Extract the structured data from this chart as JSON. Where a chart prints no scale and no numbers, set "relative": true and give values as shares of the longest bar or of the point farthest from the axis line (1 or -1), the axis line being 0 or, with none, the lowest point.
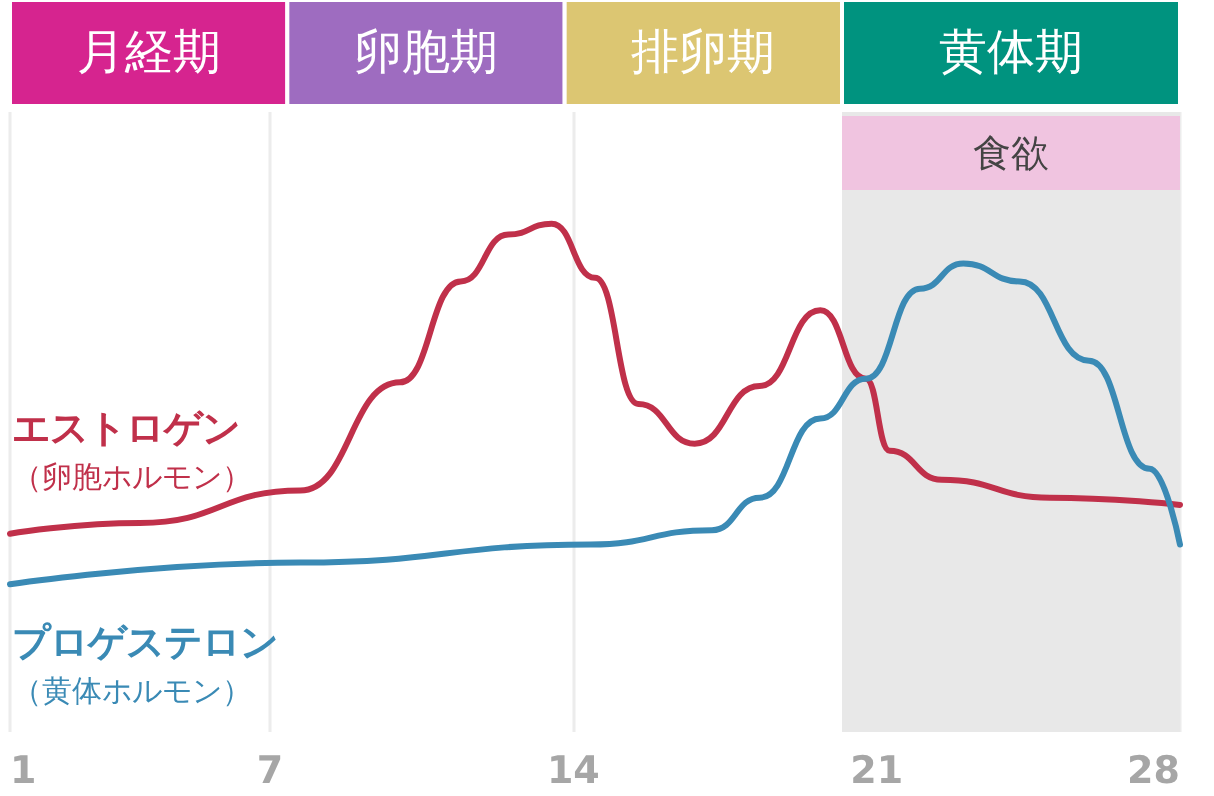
{
  "chart_data": {
    "type": "line",
    "relative": true,
    "xlim": [
      1,
      28
    ],
    "xticks": [
      1,
      7,
      14,
      21,
      28
    ],
    "grid": "x",
    "marker": "none",
    "line_style": "solid",
    "legend": false,
    "annotations": [
      "月経期",
      "卵胞期",
      "排卵期",
      "黄体期"
    ],
    "series": [
      {
        "name": "エストロゲン（卵胞ホルモン）",
        "color": "#c0304a",
        "x": [
          1,
          4,
          7.7,
          10,
          11.4,
          12.5,
          13.5,
          14.5,
          15.5,
          16.8,
          18.3,
          19.7,
          20.75,
          21.3,
          22.5,
          25,
          28
        ],
        "values": [
          0.14,
          0.17,
          0.26,
          0.56,
          0.84,
          0.97,
          1,
          0.85,
          0.5,
          0.39,
          0.55,
          0.76,
          0.57,
          0.37,
          0.29,
          0.24,
          0.22
        ]
      },
      {
        "name": "プロゲステロン（黄体ホルモン）",
        "color": "#3a8ab5",
        "x": [
          1,
          7.7,
          14.4,
          17.2,
          18.3,
          19.7,
          20.75,
          22,
          23,
          24.3,
          25.9,
          27.3,
          28
        ],
        "values": [
          0,
          0.06,
          0.11,
          0.15,
          0.24,
          0.46,
          0.57,
          0.82,
          0.89,
          0.84,
          0.62,
          0.32,
          0.11
        ]
      }
    ],
    "bands": [
      {
        "axis": "x",
        "from": 20.2,
        "to": 28,
        "label": "食欲",
        "color": "#e8e8e8"
      }
    ]
  }
}
